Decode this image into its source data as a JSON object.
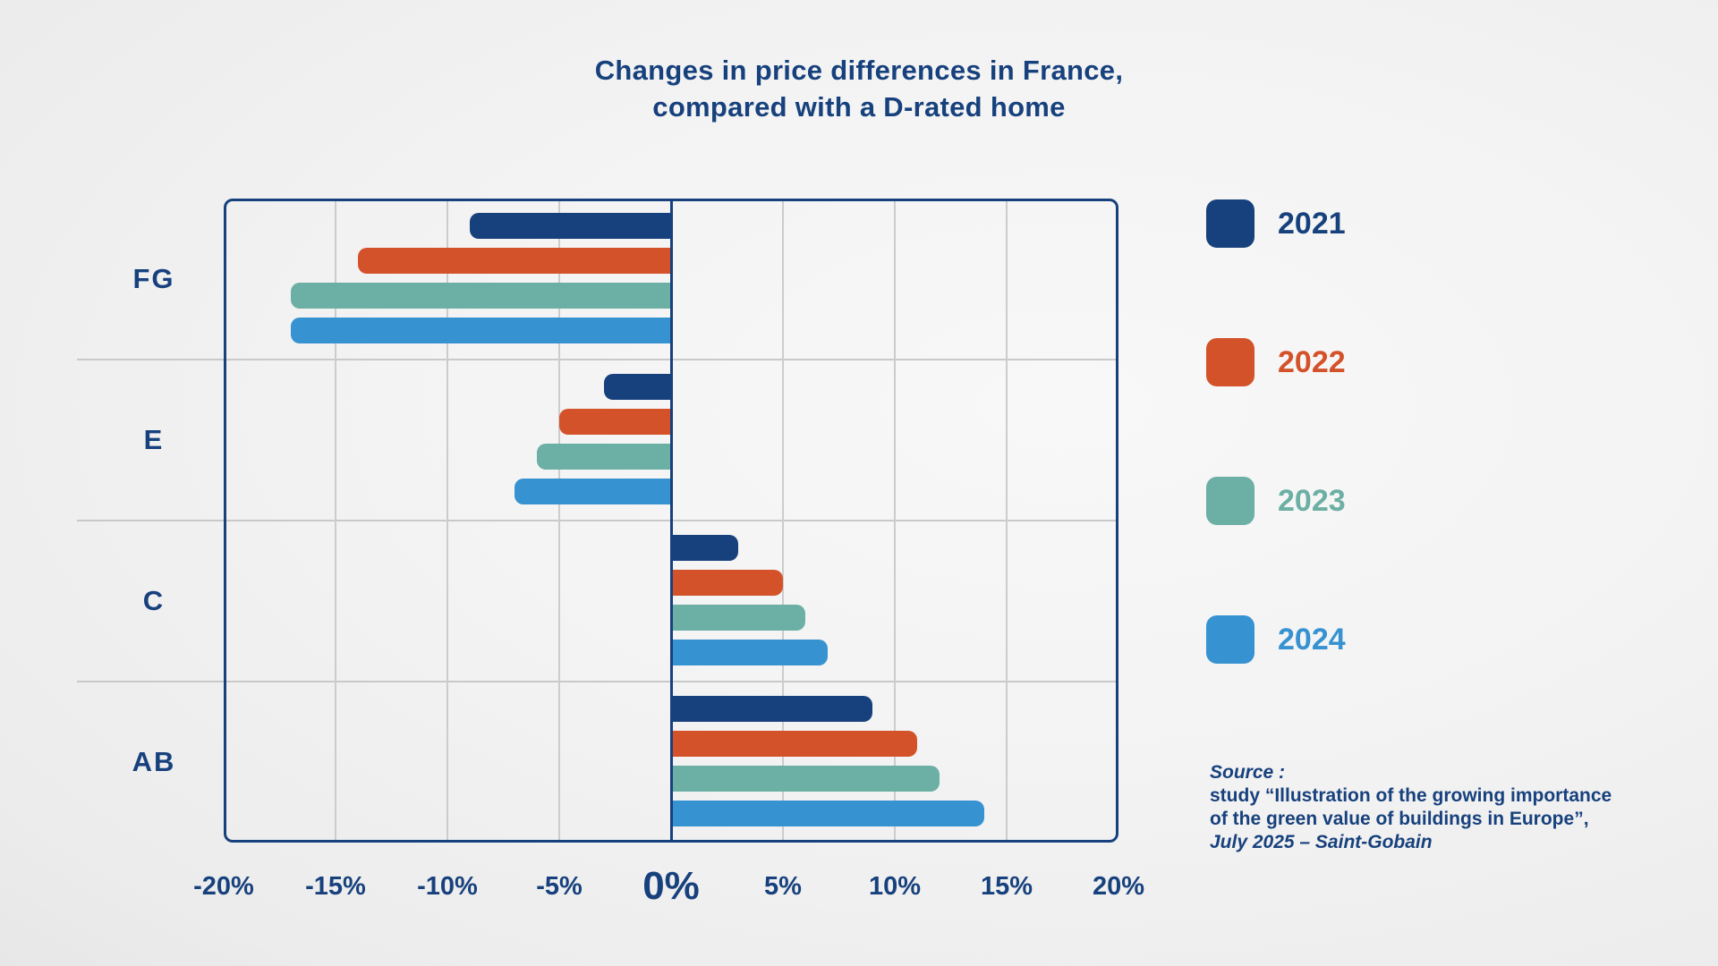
{
  "title": {
    "line1": "Changes in price differences in France,",
    "line2": "compared with a D-rated home"
  },
  "chart_data": {
    "type": "bar",
    "orientation": "horizontal",
    "title": "Changes in price differences in France, compared with a D-rated home",
    "categories": [
      "FG",
      "E",
      "C",
      "AB"
    ],
    "series": [
      {
        "name": "2021",
        "color": "#17417d",
        "values": [
          -9,
          -3,
          3,
          9
        ]
      },
      {
        "name": "2022",
        "color": "#d4522a",
        "values": [
          -14,
          -5,
          5,
          11
        ]
      },
      {
        "name": "2023",
        "color": "#6cafa4",
        "values": [
          -17,
          -6,
          6,
          12
        ]
      },
      {
        "name": "2024",
        "color": "#3692d1",
        "values": [
          -17,
          -7,
          7,
          14
        ]
      }
    ],
    "unit": "%",
    "xlim": [
      -20,
      20
    ],
    "x_ticks": [
      "-20%",
      "-15%",
      "-10%",
      "-5%",
      "0%",
      "5%",
      "10%",
      "15%",
      "20%"
    ],
    "baseline": 0,
    "grid": true,
    "legend_position": "right"
  },
  "legend_labels": [
    "2021",
    "2022",
    "2023",
    "2024"
  ],
  "source": {
    "line1": "Source :",
    "line2": "study “Illustration of the growing importance",
    "line3": "of the green value of buildings in Europe”,",
    "line4": "July 2025 – Saint-Gobain"
  },
  "colors": {
    "navy": "#17417d",
    "orange": "#d4522a",
    "teal": "#6cafa4",
    "blue": "#3692d1",
    "gridline": "#c9c9c9",
    "background": "#f1f1f1"
  }
}
